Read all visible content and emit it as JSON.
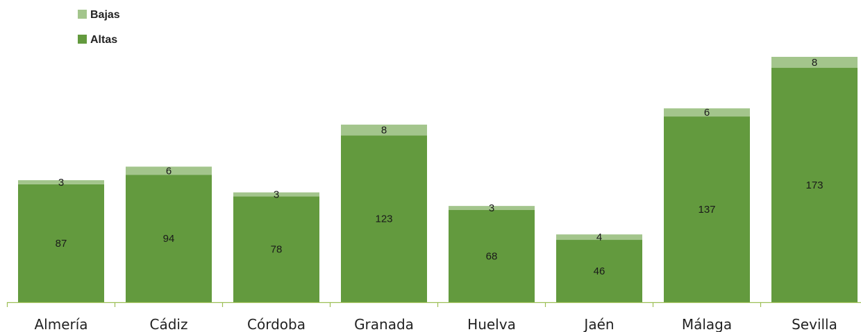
{
  "chart_data": {
    "type": "bar",
    "stacked": true,
    "categories": [
      "Almería",
      "Cádiz",
      "Córdoba",
      "Granada",
      "Huelva",
      "Jaén",
      "Málaga",
      "Sevilla"
    ],
    "series": [
      {
        "name": "Altas",
        "values": [
          87,
          94,
          78,
          123,
          68,
          46,
          137,
          173
        ],
        "color": "#639a3e"
      },
      {
        "name": "Bajas",
        "values": [
          3,
          6,
          3,
          8,
          3,
          4,
          6,
          8
        ],
        "color": "#a3c58c"
      }
    ],
    "legend_position": "top-left",
    "legend_order": [
      "Bajas",
      "Altas"
    ],
    "axis_color": "#9dbf55",
    "grid": false,
    "ylim": [
      0,
      181
    ]
  }
}
